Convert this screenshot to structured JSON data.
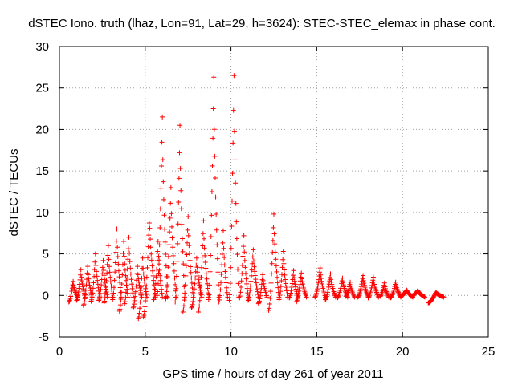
{
  "chart_data": {
    "type": "scatter",
    "title": "dSTEC Iono. truth (lhaz, Lon=91, Lat=29, h=3624): STEC-STEC_elemax in phase cont.",
    "xlabel": "GPS time / hours of day 261 of year 2011",
    "ylabel": "dSTEC  / TECUs",
    "xlim": [
      0,
      25
    ],
    "ylim": [
      -5,
      30
    ],
    "xticks": [
      0,
      5,
      10,
      15,
      20,
      25
    ],
    "yticks": [
      -5,
      0,
      5,
      10,
      15,
      20,
      25,
      30
    ],
    "grid": true,
    "marker": "plus",
    "color": "#ff0000",
    "arcs": [
      {
        "x0": 0.55,
        "x1": 1.05,
        "start": -0.8,
        "peak": 1.7
      },
      {
        "x0": 1.0,
        "x1": 1.5,
        "start": -0.6,
        "peak": 3.1
      },
      {
        "x0": 1.4,
        "x1": 1.9,
        "start": -1.2,
        "peak": 3.5
      },
      {
        "x0": 1.85,
        "x1": 2.35,
        "start": -0.7,
        "peak": 5.0
      },
      {
        "x0": 2.3,
        "x1": 2.8,
        "start": -0.6,
        "peak": 4.2
      },
      {
        "x0": 2.6,
        "x1": 3.1,
        "start": -0.9,
        "peak": 6.0
      },
      {
        "x0": 3.1,
        "x1": 3.6,
        "start": -0.5,
        "peak": 8.0
      },
      {
        "x0": 3.5,
        "x1": 4.0,
        "start": -1.9,
        "peak": 6.5
      },
      {
        "x0": 3.8,
        "x1": 4.3,
        "start": -1.0,
        "peak": 7.0
      },
      {
        "x0": 4.3,
        "x1": 4.8,
        "start": -1.5,
        "peak": 3.5
      },
      {
        "x0": 4.6,
        "x1": 5.1,
        "start": -2.8,
        "peak": 4.5
      },
      {
        "x0": 4.9,
        "x1": 5.6,
        "start": -2.6,
        "peak": 9.5
      },
      {
        "x0": 5.5,
        "x1": 6.0,
        "start": -0.5,
        "peak": 6.5
      },
      {
        "x0": 5.7,
        "x1": 6.3,
        "start": 0.0,
        "peak": 21.5
      },
      {
        "x0": 6.2,
        "x1": 6.8,
        "start": -0.4,
        "peak": 13.0
      },
      {
        "x0": 6.75,
        "x1": 7.3,
        "start": -0.8,
        "peak": 20.5
      },
      {
        "x0": 7.2,
        "x1": 7.8,
        "start": -2.0,
        "peak": 9.5
      },
      {
        "x0": 7.7,
        "x1": 8.3,
        "start": -1.5,
        "peak": 4.5
      },
      {
        "x0": 8.1,
        "x1": 8.7,
        "start": -2.0,
        "peak": 9.0
      },
      {
        "x0": 8.7,
        "x1": 9.3,
        "start": -0.5,
        "peak": 26.3
      },
      {
        "x0": 9.3,
        "x1": 9.8,
        "start": -0.8,
        "peak": 7.8
      },
      {
        "x0": 9.9,
        "x1": 10.45,
        "start": -0.6,
        "peak": 26.5
      },
      {
        "x0": 10.5,
        "x1": 11.0,
        "start": -0.3,
        "peak": 7.2
      },
      {
        "x0": 11.0,
        "x1": 11.6,
        "start": -0.6,
        "peak": 5.5
      },
      {
        "x0": 11.6,
        "x1": 12.1,
        "start": -1.0,
        "peak": 2.5
      },
      {
        "x0": 12.2,
        "x1": 12.8,
        "start": -1.8,
        "peak": 9.8
      },
      {
        "x0": 12.8,
        "x1": 13.3,
        "start": -0.5,
        "peak": 5.3
      },
      {
        "x0": 13.4,
        "x1": 13.9,
        "start": -0.3,
        "peak": 3.0
      },
      {
        "x0": 13.8,
        "x1": 14.4,
        "start": -0.8,
        "peak": 2.7
      },
      {
        "x0": 14.9,
        "x1": 15.5,
        "start": -0.2,
        "peak": 3.3
      },
      {
        "x0": 15.5,
        "x1": 16.1,
        "start": -0.5,
        "peak": 2.6
      },
      {
        "x0": 16.2,
        "x1": 16.8,
        "start": -0.3,
        "peak": 2.1
      },
      {
        "x0": 16.7,
        "x1": 17.2,
        "start": -0.1,
        "peak": 1.6
      },
      {
        "x0": 17.4,
        "x1": 18.0,
        "start": -0.2,
        "peak": 2.4
      },
      {
        "x0": 18.0,
        "x1": 18.6,
        "start": -0.3,
        "peak": 2.2
      },
      {
        "x0": 18.7,
        "x1": 19.2,
        "start": -0.1,
        "peak": 1.5
      },
      {
        "x0": 19.3,
        "x1": 19.9,
        "start": -0.3,
        "peak": 1.6
      },
      {
        "x0": 19.9,
        "x1": 20.6,
        "start": -0.1,
        "peak": 0.7
      },
      {
        "x0": 20.5,
        "x1": 21.3,
        "start": -0.1,
        "peak": 0.6
      },
      {
        "x0": 21.5,
        "x1": 22.4,
        "start": -0.9,
        "peak": 0.4
      }
    ]
  }
}
